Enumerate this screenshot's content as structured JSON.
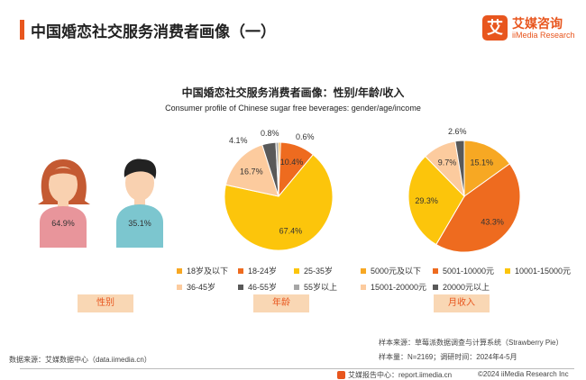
{
  "header": {
    "title": "中国婚恋社交服务消费者画像（一）",
    "logo_mark": "艾",
    "logo_cn": "艾媒咨询",
    "logo_en": "iiMedia Research"
  },
  "chart_title": "中国婚恋社交服务消费者画像：性别/年龄/收入",
  "chart_subtitle": "Consumer profile of Chinese sugar free beverages: gender/age/income",
  "chart_data": [
    {
      "type": "pictogram",
      "category_label": "性别",
      "items": [
        {
          "label": "64.9%",
          "value": 64.9,
          "figure": "female",
          "color": "#e8959b"
        },
        {
          "label": "35.1%",
          "value": 35.1,
          "figure": "male",
          "color": "#7cc6cf"
        }
      ]
    },
    {
      "type": "pie",
      "category_label": "年龄",
      "slices": [
        {
          "name": "18岁及以下",
          "value": 0.6,
          "label": "0.6%",
          "color": "#f7a823"
        },
        {
          "name": "18-24岁",
          "value": 10.4,
          "label": "10.4%",
          "color": "#ee6b1f"
        },
        {
          "name": "25-35岁",
          "value": 67.4,
          "label": "67.4%",
          "color": "#fcc50b"
        },
        {
          "name": "36-45岁",
          "value": 16.7,
          "label": "16.7%",
          "color": "#fccb9e"
        },
        {
          "name": "46-55岁",
          "value": 4.1,
          "label": "4.1%",
          "color": "#595959"
        },
        {
          "name": "55岁以上",
          "value": 0.8,
          "label": "0.8%",
          "color": "#a6a6a6"
        }
      ]
    },
    {
      "type": "pie",
      "category_label": "月收入",
      "slices": [
        {
          "name": "5000元及以下",
          "value": 15.1,
          "label": "15.1%",
          "color": "#f7a823"
        },
        {
          "name": "5001-10000元",
          "value": 43.3,
          "label": "43.3%",
          "color": "#ee6b1f"
        },
        {
          "name": "10001-15000元",
          "value": 29.3,
          "label": "29.3%",
          "color": "#fcc50b"
        },
        {
          "name": "15001-20000元",
          "value": 9.7,
          "label": "9.7%",
          "color": "#fccb9e"
        },
        {
          "name": "20000元以上",
          "value": 2.6,
          "label": "2.6%",
          "color": "#595959"
        }
      ]
    }
  ],
  "footer": {
    "source_left": "数据来源：艾媒数据中心（data.iimedia.cn）",
    "source_right": "样本来源：草莓派数据调查与计算系统（Strawberry Pie）",
    "sample": "样本量：N=2169；调研时间：2024年4-5月",
    "report_center": "艾媒报告中心：report.iimedia.cn",
    "copyright": "©2024  iiMedia Research Inc"
  }
}
